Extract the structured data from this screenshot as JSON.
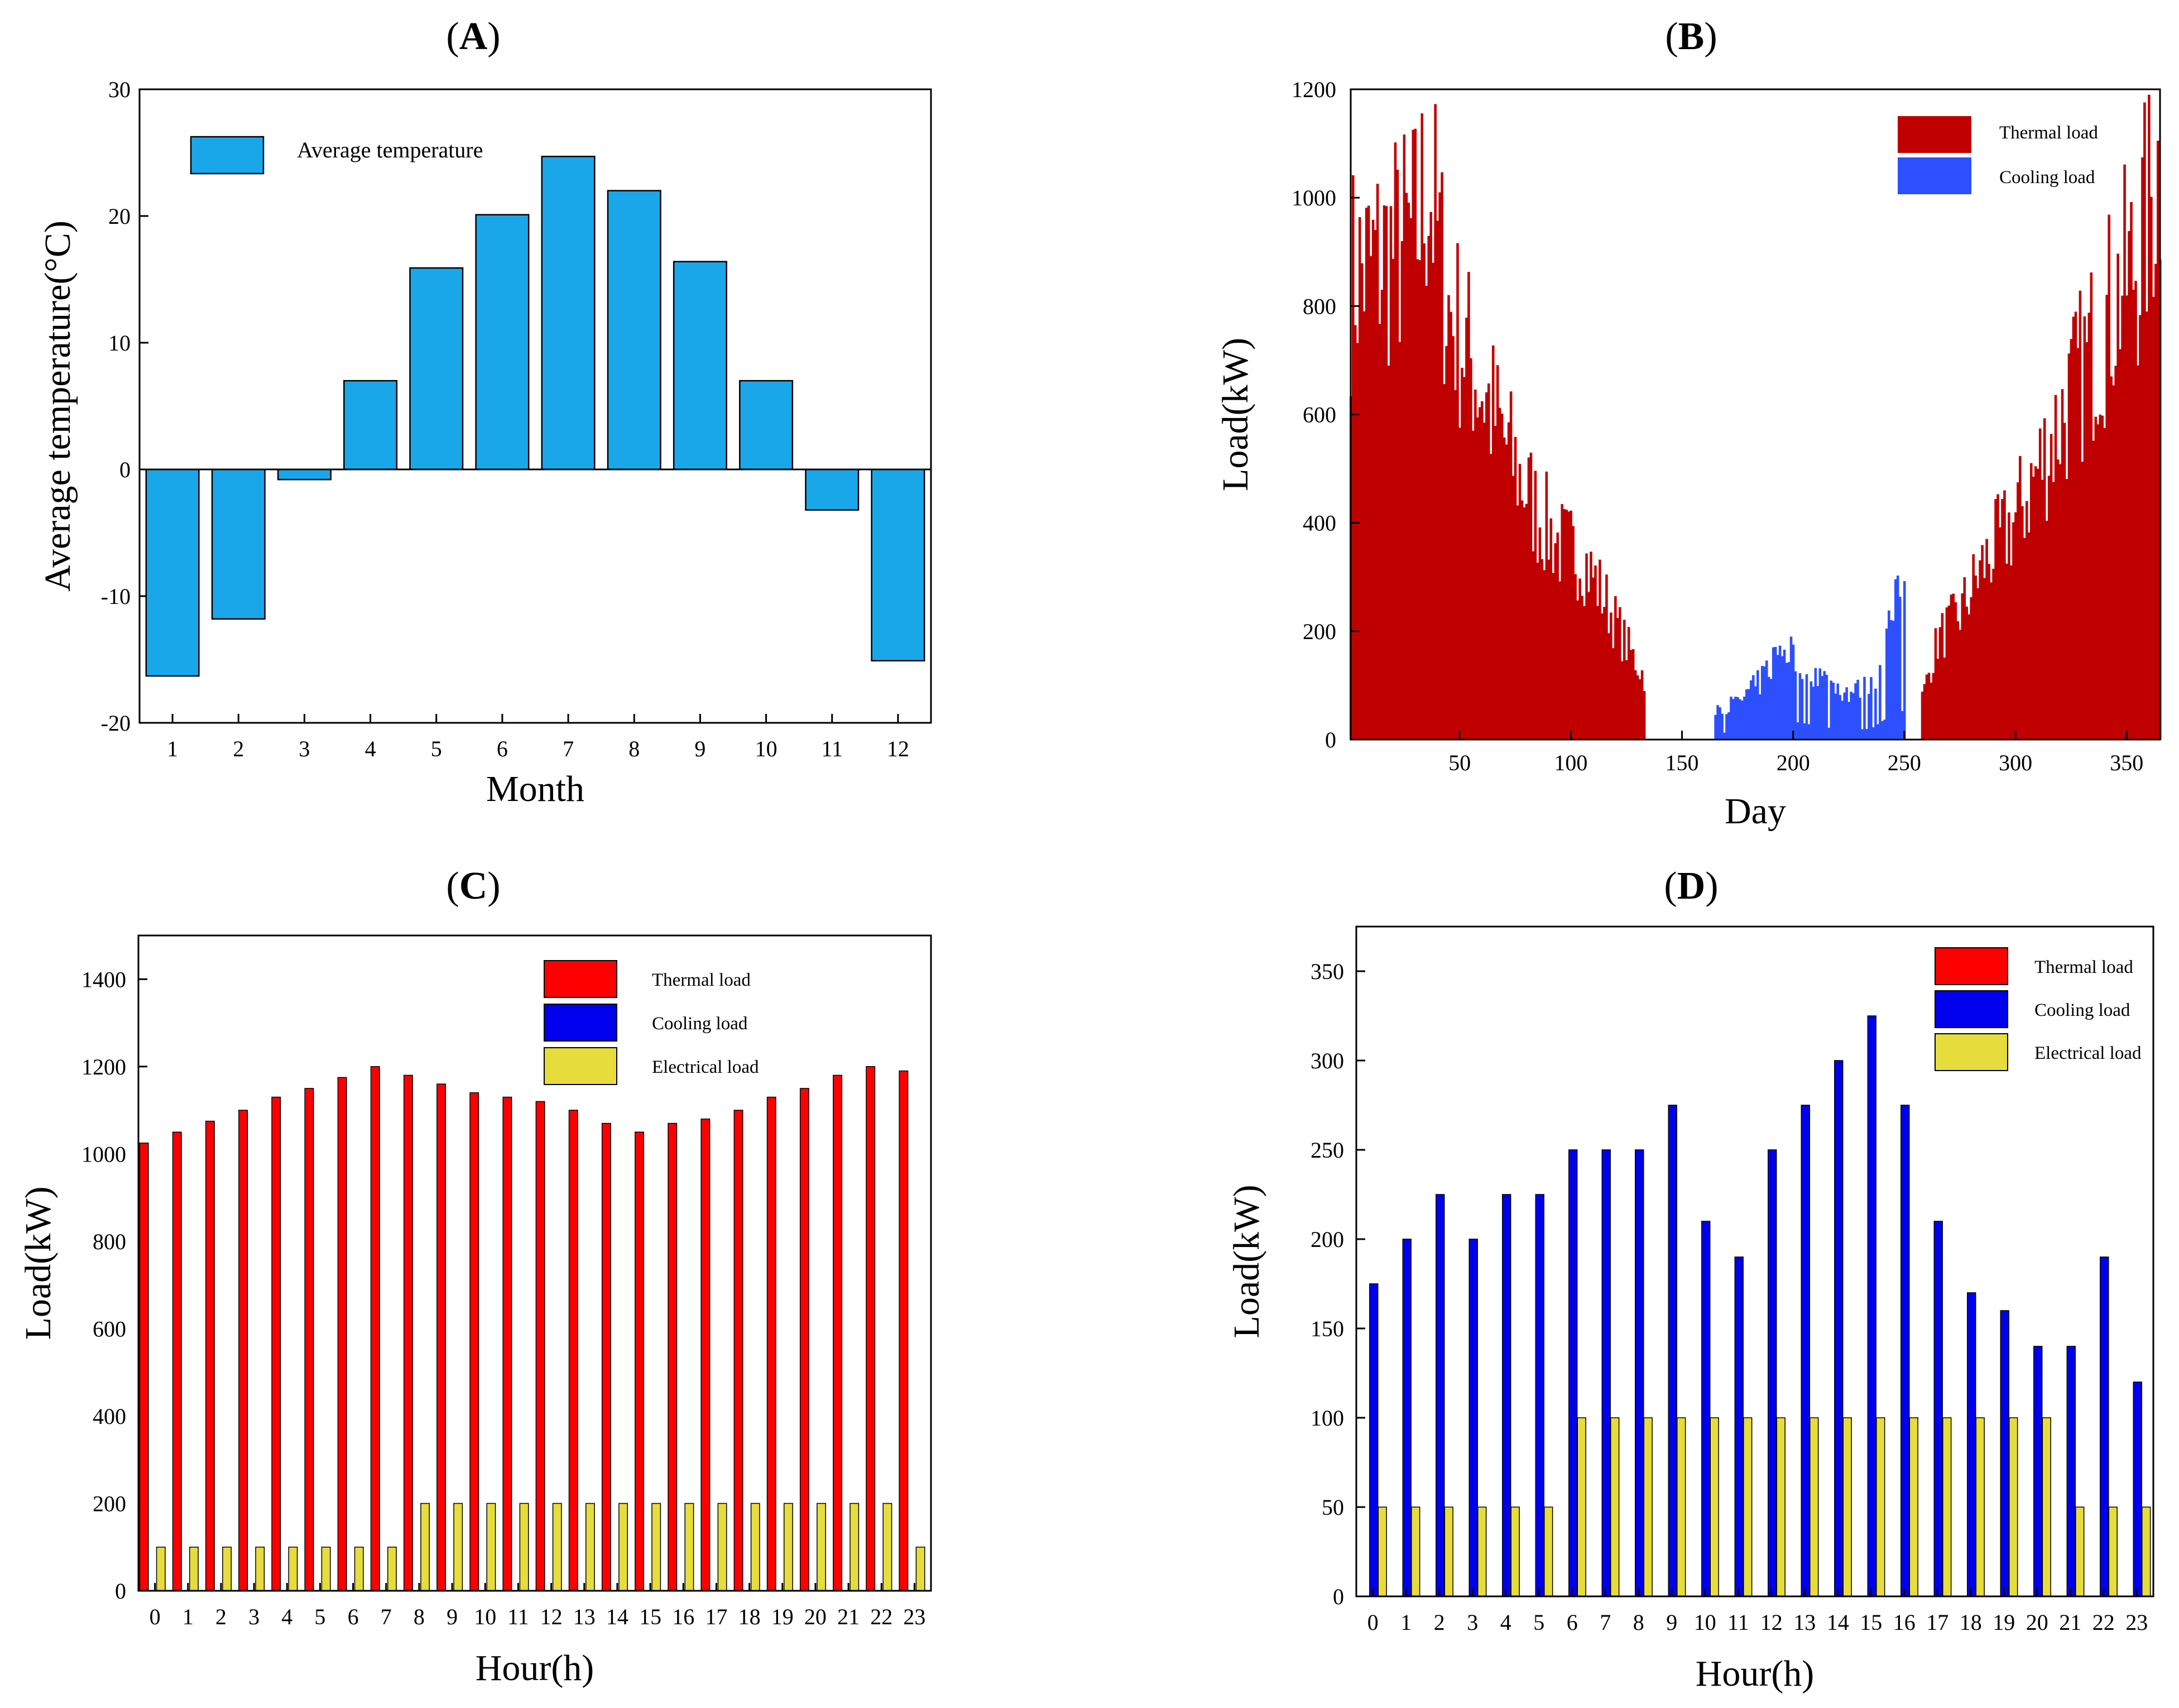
{
  "panels": {
    "A": {
      "open": "(",
      "letter": "A",
      "close": ")"
    },
    "B": {
      "open": "(",
      "letter": "B",
      "close": ")"
    },
    "C": {
      "open": "(",
      "letter": "C",
      "close": ")"
    },
    "D": {
      "open": "(",
      "letter": "D",
      "close": ")"
    }
  },
  "colors": {
    "temperature": "#1aa7ea",
    "thermal_dark": "#c00000",
    "cooling_light": "#2d50ff",
    "thermal": "#ff0000",
    "cooling": "#0000ee",
    "electrical": "#e6dc3c"
  },
  "chart_data": [
    {
      "id": "A",
      "type": "bar",
      "title": "(A)",
      "xlabel": "Month",
      "ylabel": "Average  temperature(°C)",
      "ylim": [
        -20,
        30
      ],
      "yticks": [
        "-20",
        "-10",
        "0",
        "10",
        "20",
        "30"
      ],
      "categories": [
        "1",
        "2",
        "3",
        "4",
        "5",
        "6",
        "7",
        "8",
        "9",
        "10",
        "11",
        "12"
      ],
      "legend": [
        "Average temperature"
      ],
      "series": [
        {
          "name": "Average temperature",
          "values": [
            -16.3,
            -11.8,
            -0.8,
            7.0,
            15.9,
            20.1,
            24.7,
            22.0,
            16.4,
            7.0,
            -3.2,
            -15.1
          ]
        }
      ]
    },
    {
      "id": "B",
      "type": "bar",
      "title": "(B)",
      "xlabel": "Day",
      "ylabel": "Load(kW)",
      "xlim": [
        1,
        365
      ],
      "ylim": [
        0,
        1200
      ],
      "xticks": [
        "50",
        "100",
        "150",
        "200",
        "250",
        "300",
        "350"
      ],
      "yticks": [
        "0",
        "200",
        "400",
        "600",
        "800",
        "1000",
        "1200"
      ],
      "legend": [
        "Thermal load",
        "Cooling load"
      ],
      "series": [
        {
          "name": "Thermal load",
          "profile_days": [
            1,
            10,
            20,
            30,
            36,
            45,
            55,
            65,
            75,
            85,
            95,
            105,
            115,
            125,
            133,
            258,
            265,
            275,
            285,
            300,
            315,
            330,
            345,
            355,
            365
          ],
          "profile_values": [
            880,
            900,
            930,
            960,
            1070,
            820,
            720,
            620,
            520,
            430,
            370,
            350,
            270,
            180,
            120,
            80,
            190,
            240,
            330,
            420,
            560,
            700,
            840,
            920,
            1100
          ]
        },
        {
          "name": "Cooling load",
          "profile_days": [
            165,
            175,
            185,
            195,
            205,
            215,
            225,
            235,
            245,
            250
          ],
          "profile_values": [
            60,
            70,
            110,
            180,
            150,
            110,
            90,
            100,
            240,
            270
          ]
        }
      ]
    },
    {
      "id": "C",
      "type": "bar",
      "title": "(C)",
      "xlabel": "Hour(h)",
      "ylabel": "Load(kW)",
      "ylim": [
        0,
        1500
      ],
      "yticks": [
        "0",
        "200",
        "400",
        "600",
        "800",
        "1000",
        "1200",
        "1400"
      ],
      "categories": [
        "0",
        "1",
        "2",
        "3",
        "4",
        "5",
        "6",
        "7",
        "8",
        "9",
        "10",
        "11",
        "12",
        "13",
        "14",
        "15",
        "16",
        "17",
        "18",
        "19",
        "20",
        "21",
        "22",
        "23"
      ],
      "legend": [
        "Thermal load",
        "Cooling load",
        "Electrical load"
      ],
      "series": [
        {
          "name": "Thermal load",
          "values": [
            1025,
            1050,
            1075,
            1100,
            1130,
            1150,
            1175,
            1200,
            1180,
            1160,
            1140,
            1130,
            1120,
            1100,
            1070,
            1050,
            1070,
            1080,
            1100,
            1130,
            1150,
            1180,
            1200,
            1190
          ]
        },
        {
          "name": "Cooling load",
          "values": [
            0,
            0,
            0,
            0,
            0,
            0,
            0,
            0,
            0,
            0,
            0,
            0,
            0,
            0,
            0,
            0,
            0,
            0,
            0,
            0,
            0,
            0,
            0,
            0
          ]
        },
        {
          "name": "Electrical load",
          "values": [
            100,
            100,
            100,
            100,
            100,
            100,
            100,
            100,
            200,
            200,
            200,
            200,
            200,
            200,
            200,
            200,
            200,
            200,
            200,
            200,
            200,
            200,
            200,
            100
          ]
        }
      ]
    },
    {
      "id": "D",
      "type": "bar",
      "title": "(D)",
      "xlabel": "Hour(h)",
      "ylabel": "Load(kW)",
      "ylim": [
        0,
        375
      ],
      "yticks": [
        "0",
        "50",
        "100",
        "150",
        "200",
        "250",
        "300",
        "350"
      ],
      "categories": [
        "0",
        "1",
        "2",
        "3",
        "4",
        "5",
        "6",
        "7",
        "8",
        "9",
        "10",
        "11",
        "12",
        "13",
        "14",
        "15",
        "16",
        "17",
        "18",
        "19",
        "20",
        "21",
        "22",
        "23"
      ],
      "legend": [
        "Thermal load",
        "Cooling load",
        "Electrical load"
      ],
      "series": [
        {
          "name": "Thermal load",
          "values": [
            0,
            0,
            0,
            0,
            0,
            0,
            0,
            0,
            0,
            0,
            0,
            0,
            0,
            0,
            0,
            0,
            0,
            0,
            0,
            0,
            0,
            0,
            0,
            0
          ]
        },
        {
          "name": "Cooling load",
          "values": [
            175,
            200,
            225,
            200,
            225,
            225,
            250,
            250,
            250,
            275,
            210,
            190,
            250,
            275,
            300,
            325,
            275,
            210,
            170,
            160,
            140,
            140,
            190,
            120
          ]
        },
        {
          "name": "Electrical load",
          "values": [
            50,
            50,
            50,
            50,
            50,
            50,
            100,
            100,
            100,
            100,
            100,
            100,
            100,
            100,
            100,
            100,
            100,
            100,
            100,
            100,
            100,
            50,
            50,
            50
          ]
        }
      ]
    }
  ]
}
